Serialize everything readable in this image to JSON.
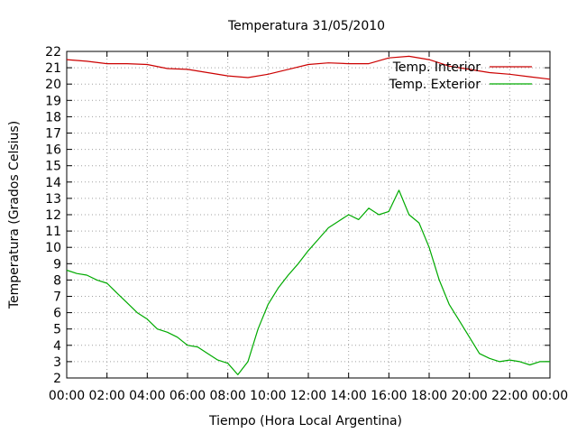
{
  "chart_data": {
    "type": "line",
    "title": "Temperatura 31/05/2010",
    "xlabel": "Tiempo (Hora Local Argentina)",
    "ylabel": "Temperatura (Grados Celsius)",
    "xlim": [
      0,
      24
    ],
    "ylim": [
      2,
      22
    ],
    "x_ticks": [
      0,
      2,
      4,
      6,
      8,
      10,
      12,
      14,
      16,
      18,
      20,
      22,
      24
    ],
    "x_tick_labels": [
      "00:00",
      "02:00",
      "04:00",
      "06:00",
      "08:00",
      "10:00",
      "12:00",
      "14:00",
      "16:00",
      "18:00",
      "20:00",
      "22:00",
      "00:00"
    ],
    "y_ticks": [
      2,
      3,
      4,
      5,
      6,
      7,
      8,
      9,
      10,
      11,
      12,
      13,
      14,
      15,
      16,
      17,
      18,
      19,
      20,
      21,
      22
    ],
    "y_tick_labels": [
      "2",
      "3",
      "4",
      "5",
      "6",
      "7",
      "8",
      "9",
      "10",
      "11",
      "12",
      "13",
      "14",
      "15",
      "16",
      "17",
      "18",
      "19",
      "20",
      "21",
      "22"
    ],
    "grid": true,
    "legend_position": "top-right",
    "series": [
      {
        "name": "Temp. Interior",
        "color": "#cc0000",
        "x": [
          0,
          1,
          2,
          3,
          4,
          5,
          6,
          7,
          8,
          9,
          10,
          11,
          12,
          13,
          14,
          15,
          16,
          17,
          18,
          19,
          20,
          21,
          22,
          23,
          24
        ],
        "y": [
          21.5,
          21.4,
          21.25,
          21.25,
          21.2,
          20.95,
          20.9,
          20.7,
          20.5,
          20.4,
          20.6,
          20.9,
          21.2,
          21.3,
          21.25,
          21.25,
          21.6,
          21.7,
          21.5,
          21.1,
          20.9,
          20.7,
          20.6,
          20.45,
          20.3
        ]
      },
      {
        "name": "Temp. Exterior",
        "color": "#00aa00",
        "x": [
          0,
          0.5,
          1,
          1.5,
          2,
          2.5,
          3,
          3.5,
          4,
          4.5,
          5,
          5.5,
          6,
          6.5,
          7,
          7.5,
          8,
          8.5,
          9,
          9.5,
          10,
          10.5,
          11,
          11.5,
          12,
          12.5,
          13,
          13.5,
          14,
          14.5,
          15,
          15.5,
          16,
          16.5,
          17,
          17.5,
          18,
          18.5,
          19,
          19.5,
          20,
          20.5,
          21,
          21.5,
          22,
          22.5,
          23,
          23.5,
          24
        ],
        "y": [
          8.6,
          8.4,
          8.3,
          8.0,
          7.8,
          7.2,
          6.6,
          6.0,
          5.6,
          5.0,
          4.8,
          4.5,
          4.0,
          3.9,
          3.5,
          3.1,
          2.9,
          2.2,
          3.0,
          5.0,
          6.5,
          7.5,
          8.3,
          9.0,
          9.8,
          10.5,
          11.2,
          11.6,
          12.0,
          11.7,
          12.4,
          12.0,
          12.2,
          13.5,
          12.0,
          11.5,
          10.0,
          8.0,
          6.5,
          5.5,
          4.5,
          3.5,
          3.2,
          3.0,
          3.1,
          3.0,
          2.8,
          3.0,
          3.0
        ]
      }
    ]
  }
}
